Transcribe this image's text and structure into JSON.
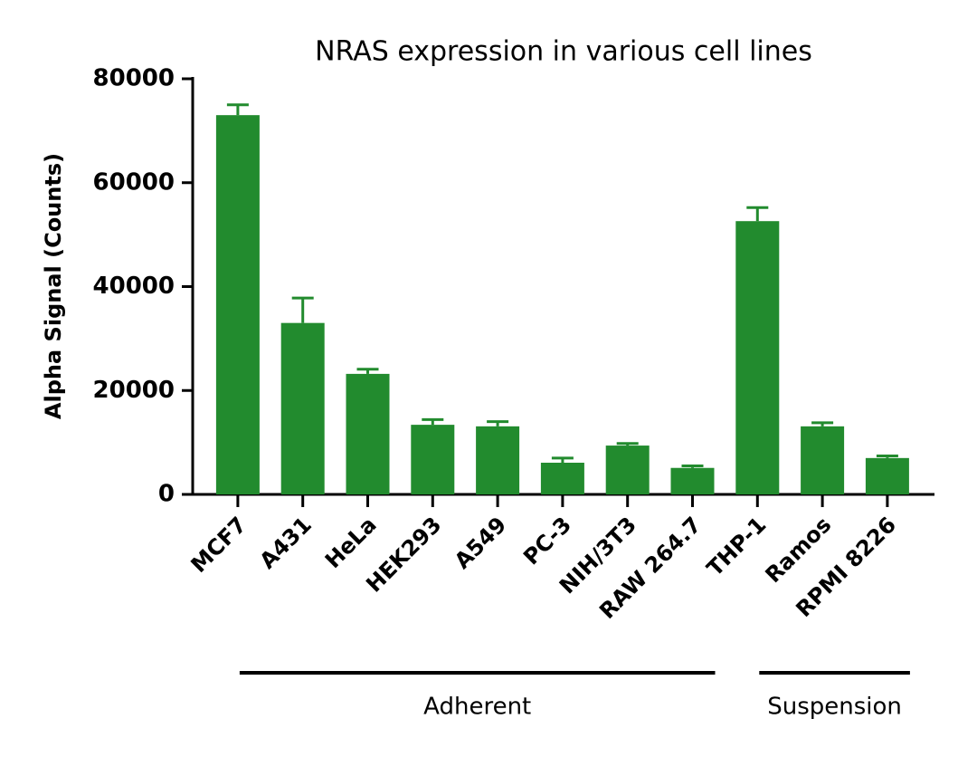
{
  "chart_data": {
    "type": "bar",
    "title": "NRAS expression in various cell lines",
    "y_label": "Alpha Signal (Counts)",
    "categories": [
      "MCF7",
      "A431",
      "HeLa",
      "HEK293",
      "A549",
      "PC-3",
      "NIH/3T3",
      "RAW 264.7",
      "THP-1",
      "Ramos",
      "RPMI 8226"
    ],
    "series": [
      {
        "color": "#228b2e",
        "values": [
          73000,
          33000,
          23200,
          13400,
          13100,
          6100,
          9400,
          5100,
          52600,
          13100,
          7000
        ],
        "errors": [
          2000,
          4800,
          900,
          1000,
          900,
          900,
          400,
          400,
          2600,
          700,
          400
        ]
      }
    ],
    "ylim": [
      0,
      80000
    ],
    "yticks": [
      0,
      20000,
      40000,
      60000,
      80000
    ],
    "groups": [
      {
        "name": "Adherent",
        "categories": [
          "MCF7",
          "A431",
          "HeLa",
          "HEK293",
          "A549",
          "PC-3",
          "NIH/3T3",
          "RAW 264.7"
        ]
      },
      {
        "name": "Suspension",
        "categories": [
          "THP-1",
          "Ramos",
          "RPMI 8226"
        ]
      }
    ]
  }
}
